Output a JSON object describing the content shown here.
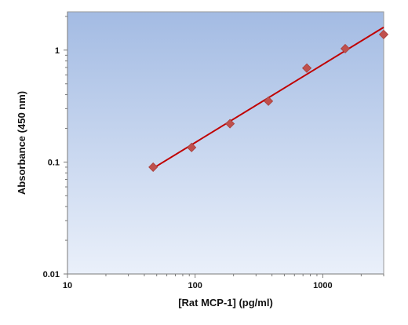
{
  "chart_data": {
    "type": "scatter",
    "title": "",
    "xlabel": "[Rat MCP-1] (pg/ml)",
    "ylabel": "Absorbance (450 nm)",
    "xscale": "log",
    "yscale": "log",
    "xlim": [
      10,
      3000
    ],
    "ylim": [
      0.01,
      2.2
    ],
    "xticks": [
      10,
      100,
      1000
    ],
    "xtick_labels": [
      "10",
      "100",
      "1000"
    ],
    "yticks": [
      0.01,
      0.1,
      1
    ],
    "ytick_labels": [
      "0.01",
      "0.1",
      "1"
    ],
    "grid": false,
    "legend": "none",
    "series": [
      {
        "x": [
          46.9,
          93.8,
          187.5,
          375,
          750,
          1500,
          3000
        ],
        "y": [
          0.09,
          0.135,
          0.22,
          0.35,
          0.69,
          1.03,
          1.38
        ],
        "marker": "diamond",
        "color": "#c0504d"
      }
    ],
    "fit_line": {
      "x": [
        46.9,
        3000
      ],
      "y": [
        0.088,
        1.6
      ],
      "color": "#c00000"
    },
    "background_gradient": [
      "#a3bbe3",
      "#eaf0fa"
    ]
  }
}
